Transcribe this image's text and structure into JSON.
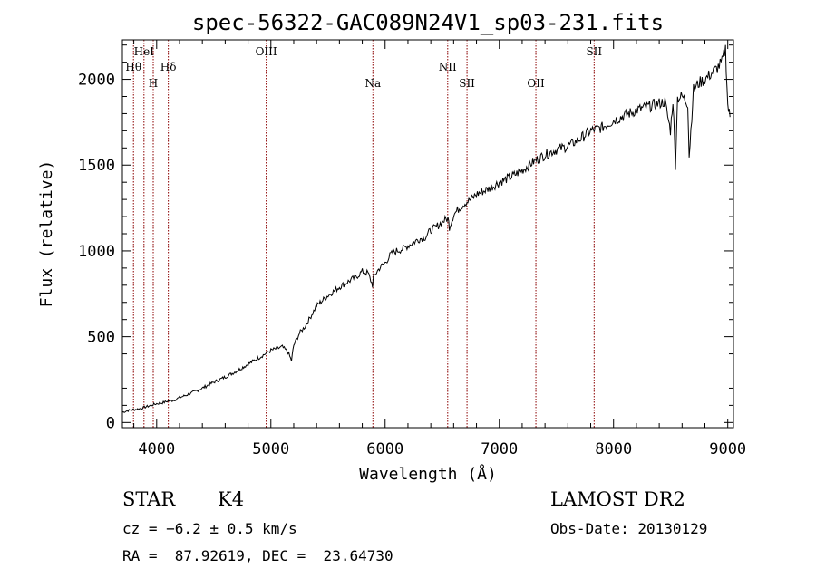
{
  "chart_data": {
    "type": "line",
    "title": "spec-56322-GAC089N24V1_sp03-231.fits",
    "xlabel": "Wavelength (Å)",
    "ylabel": "Flux (relative)",
    "xlim": [
      3700,
      9050
    ],
    "ylim": [
      -30,
      2230
    ],
    "xticks": [
      4000,
      5000,
      6000,
      7000,
      8000,
      9000
    ],
    "xtick_labels": [
      "4000",
      "5000",
      "6000",
      "7000",
      "8000",
      "9000"
    ],
    "yticks": [
      0,
      500,
      1000,
      1500,
      2000
    ],
    "ytick_labels": [
      "0",
      "500",
      "1000",
      "1500",
      "2000"
    ],
    "grid": false,
    "series": [
      {
        "x": [
          3700,
          3750,
          3800,
          3850,
          3900,
          3950,
          4000,
          4050,
          4100,
          4150,
          4200,
          4300,
          4400,
          4500,
          4600,
          4700,
          4800,
          4900,
          4950,
          5000,
          5050,
          5100,
          5150,
          5180,
          5200,
          5250,
          5300,
          5350,
          5400,
          5500,
          5600,
          5700,
          5750,
          5800,
          5850,
          5890,
          5900,
          5950,
          6000,
          6050,
          6100,
          6150,
          6200,
          6250,
          6300,
          6350,
          6400,
          6450,
          6500,
          6550,
          6563,
          6600,
          6650,
          6700,
          6750,
          6800,
          6900,
          7000,
          7100,
          7200,
          7300,
          7400,
          7500,
          7550,
          7600,
          7650,
          7700,
          7800,
          7900,
          8000,
          8100,
          8200,
          8300,
          8400,
          8450,
          8498,
          8520,
          8542,
          8560,
          8600,
          8650,
          8662,
          8700,
          8750,
          8800,
          8850,
          8900,
          8950,
          8980,
          9000,
          9020
        ],
        "y": [
          60,
          70,
          75,
          80,
          90,
          100,
          110,
          115,
          125,
          130,
          145,
          170,
          200,
          235,
          265,
          300,
          340,
          380,
          400,
          420,
          430,
          440,
          410,
          360,
          450,
          520,
          560,
          620,
          680,
          740,
          790,
          830,
          850,
          880,
          870,
          800,
          850,
          900,
          930,
          980,
          1000,
          1010,
          1030,
          1050,
          1070,
          1080,
          1120,
          1140,
          1170,
          1190,
          1140,
          1210,
          1250,
          1280,
          1300,
          1330,
          1360,
          1400,
          1430,
          1470,
          1520,
          1560,
          1590,
          1600,
          1610,
          1630,
          1650,
          1700,
          1720,
          1760,
          1790,
          1820,
          1840,
          1860,
          1870,
          1700,
          1880,
          1500,
          1890,
          1900,
          1860,
          1550,
          1940,
          1980,
          2000,
          2030,
          2060,
          2100,
          2180,
          1850,
          1780
        ]
      }
    ],
    "spectral_lines": [
      {
        "label": "Hθ",
        "x": 3797,
        "row": 1
      },
      {
        "label": "HeI",
        "x": 3889,
        "row": 0
      },
      {
        "label": "H",
        "x": 3970,
        "row": 2
      },
      {
        "label": "Hδ",
        "x": 4102,
        "row": 1
      },
      {
        "label": "OIII",
        "x": 4959,
        "row": 0
      },
      {
        "label": "Na",
        "x": 5893,
        "row": 2
      },
      {
        "label": "NII",
        "x": 6548,
        "row": 1
      },
      {
        "label": "SII",
        "x": 6717,
        "row": 2
      },
      {
        "label": "OII",
        "x": 7320,
        "row": 2
      },
      {
        "label": "SII",
        "x": 7830,
        "row": 0
      }
    ],
    "line_color": "#000000",
    "marker_line_color": "#8b0000"
  },
  "info": {
    "object_class": "STAR",
    "subclass": "K4",
    "survey": "LAMOST DR2",
    "cz": "cz = −6.2 ± 0.5 km/s",
    "obs_date": "Obs-Date: 20130129",
    "coords": "RA =  87.92619, DEC =  23.64730"
  }
}
